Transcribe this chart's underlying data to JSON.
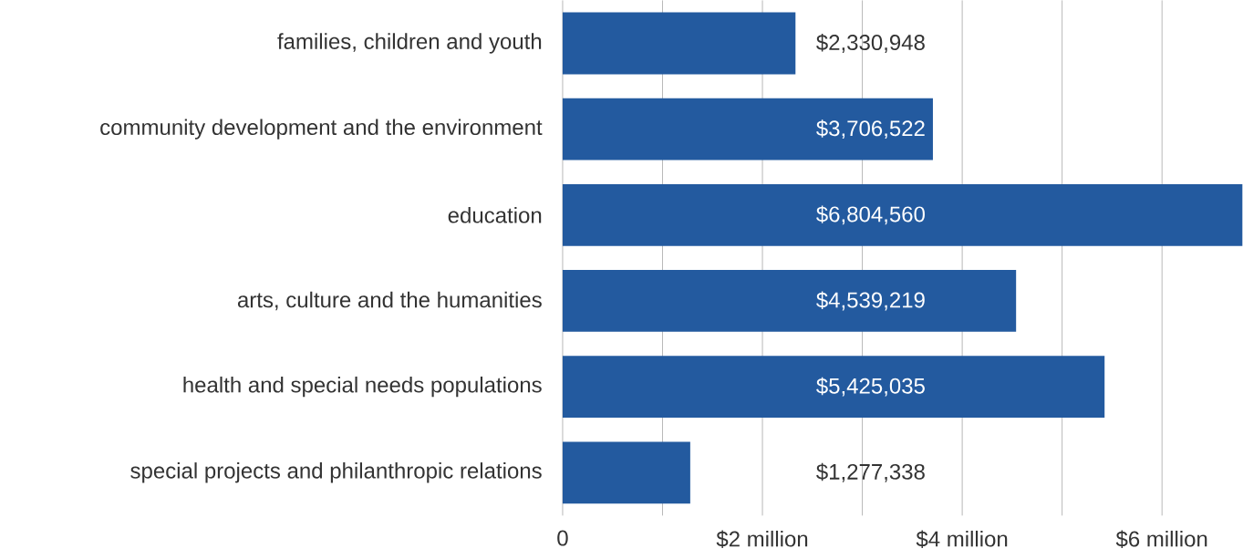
{
  "chart_data": {
    "type": "bar",
    "orientation": "horizontal",
    "categories": [
      "families, children and youth",
      "community development and the environment",
      "education",
      "arts, culture and the humanities",
      "health and special needs populations",
      "special projects and philanthropic relations"
    ],
    "values": [
      2330948,
      3706522,
      6804560,
      4539219,
      5425035,
      1277338
    ],
    "value_labels": [
      "$2,330,948",
      "$3,706,522",
      "$6,804,560",
      "$4,539,219",
      "$5,425,035",
      "$1,277,338"
    ],
    "color": "#235a9f",
    "xlim": [
      0,
      6810000
    ],
    "xticks": [
      0,
      {
        "value": 1000000,
        "label": null
      },
      {
        "value": 2000000,
        "label": "$2 million"
      },
      {
        "value": 3000000,
        "label": null
      },
      {
        "value": 4000000,
        "label": "$4 million"
      },
      {
        "value": 5000000,
        "label": null
      },
      {
        "value": 6000000,
        "label": "$6 million"
      }
    ],
    "grid": "x"
  }
}
